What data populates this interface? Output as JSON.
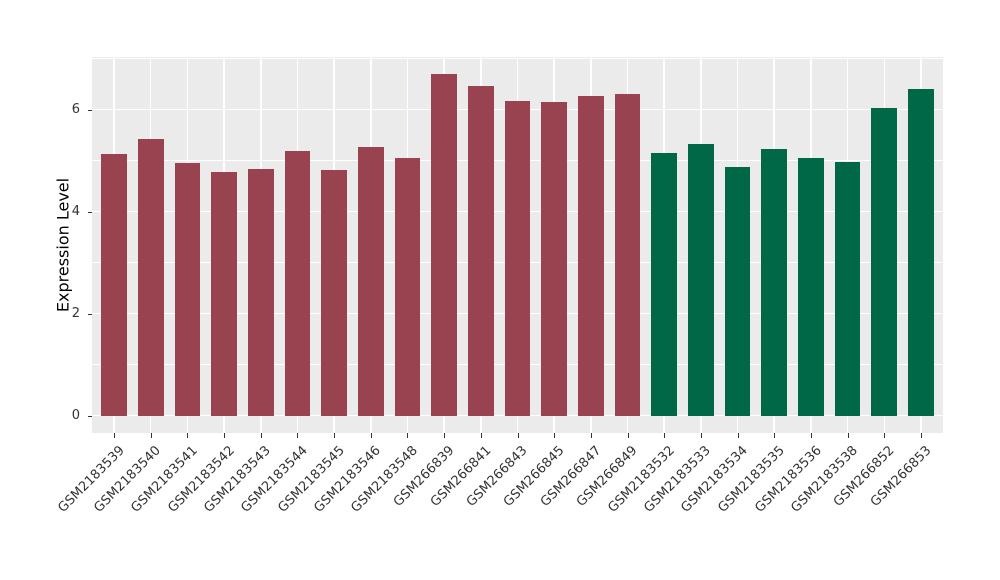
{
  "chart_data": {
    "type": "bar",
    "title": "",
    "xlabel": "",
    "ylabel": "Expression Level",
    "categories": [
      "GSM2183539",
      "GSM2183540",
      "GSM2183541",
      "GSM2183542",
      "GSM2183543",
      "GSM2183544",
      "GSM2183545",
      "GSM2183546",
      "GSM2183548",
      "GSM266839",
      "GSM266841",
      "GSM266843",
      "GSM266845",
      "GSM266847",
      "GSM266849",
      "GSM2183532",
      "GSM2183533",
      "GSM2183534",
      "GSM2183535",
      "GSM2183536",
      "GSM2183538",
      "GSM266852",
      "GSM266853"
    ],
    "values": [
      5.12,
      5.43,
      4.95,
      4.77,
      4.83,
      5.18,
      4.81,
      5.26,
      5.06,
      6.69,
      6.46,
      6.16,
      6.14,
      6.27,
      6.31,
      5.15,
      5.33,
      4.87,
      5.23,
      5.06,
      4.98,
      6.03,
      6.41
    ],
    "bar_groups": [
      "group1",
      "group1",
      "group1",
      "group1",
      "group1",
      "group1",
      "group1",
      "group1",
      "group1",
      "group1",
      "group1",
      "group1",
      "group1",
      "group1",
      "group1",
      "group2",
      "group2",
      "group2",
      "group2",
      "group2",
      "group2",
      "group2",
      "group2"
    ],
    "group_colors": {
      "group1": "#9A4350",
      "group2": "#016847"
    },
    "yticks": [
      0,
      2,
      4,
      6
    ],
    "yticks_minor": [
      1,
      3,
      5,
      7
    ],
    "ylim_display": [
      -0.34,
      7.03
    ],
    "legend": "none",
    "grid": "on",
    "panel_bg": "#EBEBEB",
    "grid_color": "#FFFFFF",
    "tick_text_color": "#333333"
  }
}
